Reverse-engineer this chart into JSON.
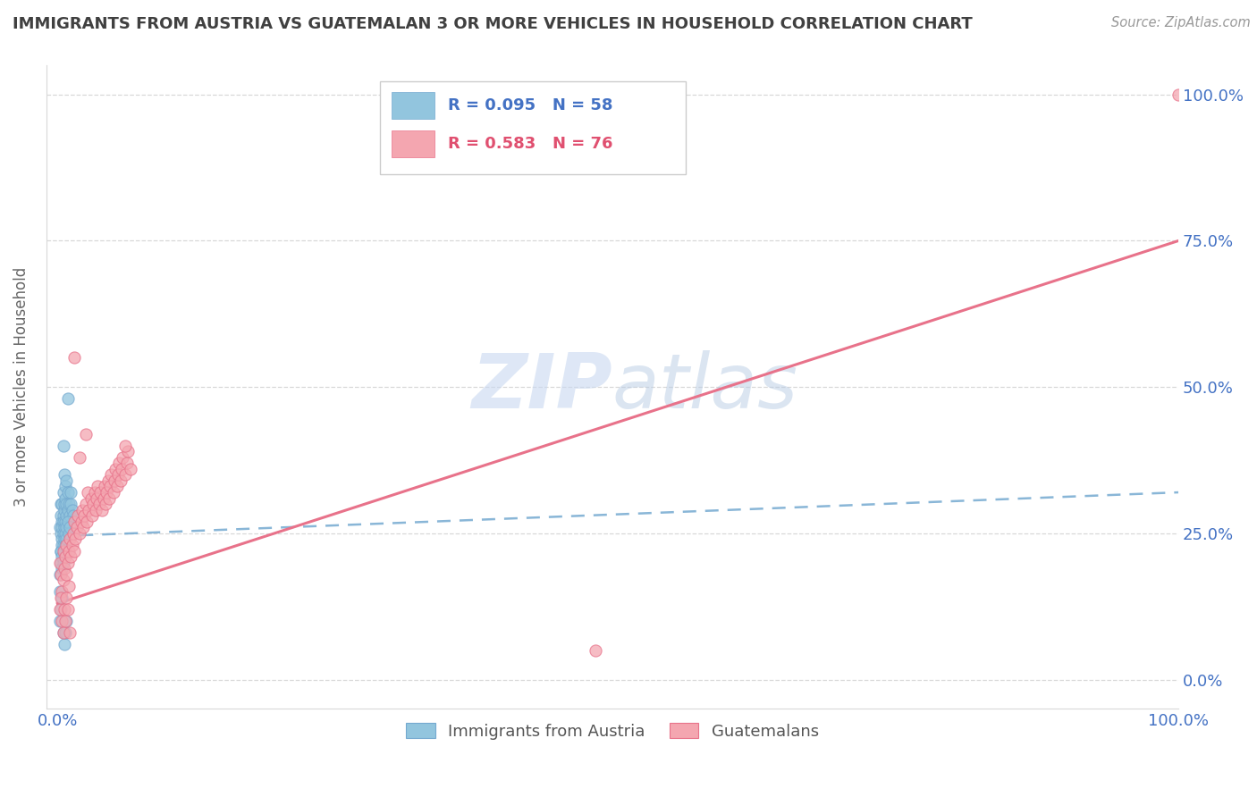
{
  "title": "IMMIGRANTS FROM AUSTRIA VS GUATEMALAN 3 OR MORE VEHICLES IN HOUSEHOLD CORRELATION CHART",
  "source": "Source: ZipAtlas.com",
  "ylabel": "3 or more Vehicles in Household",
  "legend1_label": "Immigrants from Austria",
  "legend2_label": "Guatemalans",
  "r1": 0.095,
  "n1": 58,
  "r2": 0.583,
  "n2": 76,
  "color_blue": "#92c5de",
  "color_pink": "#f4a6b0",
  "color_blue_line": "#74a9d0",
  "color_pink_line": "#e8728a",
  "color_blue_text": "#4472c4",
  "color_pink_text": "#e05070",
  "title_color": "#404040",
  "source_color": "#999999",
  "grid_color": "#d8d8d8",
  "watermark_color": "#c8d8f0",
  "austria_x": [
    0.002,
    0.003,
    0.003,
    0.003,
    0.003,
    0.004,
    0.004,
    0.004,
    0.004,
    0.004,
    0.005,
    0.005,
    0.005,
    0.005,
    0.005,
    0.006,
    0.006,
    0.006,
    0.006,
    0.007,
    0.007,
    0.007,
    0.008,
    0.008,
    0.008,
    0.009,
    0.009,
    0.01,
    0.011,
    0.012,
    0.012,
    0.013,
    0.014,
    0.002,
    0.002,
    0.003,
    0.003,
    0.004,
    0.004,
    0.005,
    0.005,
    0.006,
    0.006,
    0.007,
    0.007,
    0.008,
    0.008,
    0.009,
    0.01,
    0.011,
    0.002,
    0.003,
    0.004,
    0.005,
    0.006,
    0.007,
    0.008,
    0.009
  ],
  "austria_y": [
    0.26,
    0.25,
    0.28,
    0.3,
    0.22,
    0.27,
    0.24,
    0.3,
    0.23,
    0.26,
    0.28,
    0.32,
    0.25,
    0.27,
    0.4,
    0.35,
    0.29,
    0.26,
    0.3,
    0.33,
    0.27,
    0.31,
    0.3,
    0.28,
    0.34,
    0.29,
    0.32,
    0.3,
    0.28,
    0.3,
    0.32,
    0.29,
    0.28,
    0.15,
    0.18,
    0.2,
    0.22,
    0.21,
    0.19,
    0.23,
    0.2,
    0.24,
    0.22,
    0.25,
    0.23,
    0.26,
    0.24,
    0.27,
    0.25,
    0.26,
    0.1,
    0.12,
    0.14,
    0.08,
    0.06,
    0.08,
    0.1,
    0.48
  ],
  "guatemalan_x": [
    0.002,
    0.003,
    0.004,
    0.005,
    0.005,
    0.006,
    0.007,
    0.008,
    0.008,
    0.009,
    0.01,
    0.011,
    0.012,
    0.013,
    0.014,
    0.015,
    0.015,
    0.016,
    0.017,
    0.018,
    0.02,
    0.021,
    0.022,
    0.023,
    0.024,
    0.025,
    0.026,
    0.027,
    0.028,
    0.03,
    0.031,
    0.032,
    0.033,
    0.034,
    0.035,
    0.036,
    0.037,
    0.038,
    0.04,
    0.041,
    0.042,
    0.043,
    0.044,
    0.045,
    0.046,
    0.047,
    0.048,
    0.05,
    0.051,
    0.052,
    0.053,
    0.054,
    0.055,
    0.056,
    0.057,
    0.058,
    0.06,
    0.062,
    0.063,
    0.065,
    0.002,
    0.003,
    0.004,
    0.005,
    0.006,
    0.007,
    0.008,
    0.009,
    0.01,
    0.011,
    0.015,
    0.02,
    0.025,
    0.06,
    0.48,
    1.0
  ],
  "guatemalan_y": [
    0.2,
    0.18,
    0.15,
    0.17,
    0.22,
    0.19,
    0.21,
    0.18,
    0.23,
    0.2,
    0.22,
    0.24,
    0.21,
    0.23,
    0.25,
    0.22,
    0.27,
    0.24,
    0.26,
    0.28,
    0.25,
    0.27,
    0.29,
    0.26,
    0.28,
    0.3,
    0.27,
    0.32,
    0.29,
    0.31,
    0.28,
    0.3,
    0.32,
    0.29,
    0.31,
    0.33,
    0.3,
    0.32,
    0.29,
    0.31,
    0.33,
    0.3,
    0.32,
    0.34,
    0.31,
    0.33,
    0.35,
    0.32,
    0.34,
    0.36,
    0.33,
    0.35,
    0.37,
    0.34,
    0.36,
    0.38,
    0.35,
    0.37,
    0.39,
    0.36,
    0.12,
    0.14,
    0.1,
    0.08,
    0.12,
    0.1,
    0.14,
    0.12,
    0.16,
    0.08,
    0.55,
    0.38,
    0.42,
    0.4,
    0.05,
    1.0
  ],
  "xlim_data": [
    0.0,
    1.0
  ],
  "ylim_data": [
    0.0,
    1.0
  ],
  "figsize": [
    14.06,
    8.92
  ],
  "dpi": 100,
  "blue_line_x": [
    0.0,
    1.0
  ],
  "blue_line_y_start": 0.245,
  "blue_line_y_end": 0.32,
  "pink_line_x": [
    0.0,
    1.0
  ],
  "pink_line_y_start": 0.13,
  "pink_line_y_end": 0.75
}
